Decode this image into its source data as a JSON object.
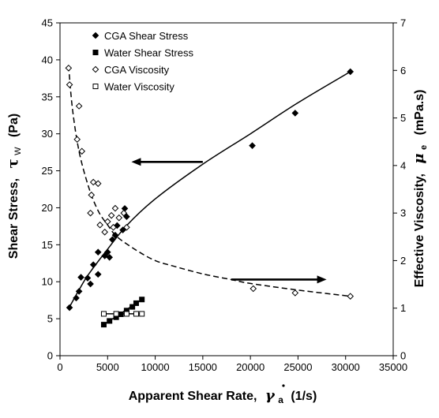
{
  "chart_data": {
    "type": "scatter",
    "title": "",
    "x_axis": {
      "label": "Apparent Shear Rate,",
      "symbol": "γ",
      "symbol_subscript": "a",
      "units": "(1/s)",
      "range": [
        0,
        35000
      ],
      "ticks": [
        0,
        5000,
        10000,
        15000,
        20000,
        25000,
        30000,
        35000
      ]
    },
    "y_axis_left": {
      "label": "Shear Stress,",
      "symbol": "τ",
      "symbol_subscript": "W",
      "units": "(Pa)",
      "range": [
        0,
        45
      ],
      "ticks": [
        0,
        5,
        10,
        15,
        20,
        25,
        30,
        35,
        40,
        45
      ]
    },
    "y_axis_right": {
      "label": "Effective Viscosity,",
      "symbol": "μ",
      "symbol_subscript": "e",
      "units": "(mPa.s)",
      "range": [
        0,
        7
      ],
      "ticks": [
        0,
        1,
        2,
        3,
        4,
        5,
        6,
        7
      ]
    },
    "grid": false,
    "legend_position": "top-left",
    "series": [
      {
        "name": "CGA Shear Stress",
        "axis": "left",
        "marker": "filled-diamond",
        "points": [
          [
            1000,
            6.5
          ],
          [
            1700,
            7.8
          ],
          [
            2000,
            8.7
          ],
          [
            2200,
            10.6
          ],
          [
            2900,
            10.5
          ],
          [
            3200,
            9.7
          ],
          [
            3500,
            12.3
          ],
          [
            4000,
            14.0
          ],
          [
            4000,
            11.0
          ],
          [
            4700,
            13.5
          ],
          [
            5000,
            14.0
          ],
          [
            5200,
            13.3
          ],
          [
            5500,
            15.7
          ],
          [
            5800,
            16.3
          ],
          [
            6000,
            17.6
          ],
          [
            6600,
            17.0
          ],
          [
            6800,
            19.9
          ],
          [
            7000,
            18.8
          ],
          [
            20200,
            28.4
          ],
          [
            24700,
            32.8
          ],
          [
            30500,
            38.4
          ]
        ]
      },
      {
        "name": "Water Shear Stress",
        "axis": "left",
        "marker": "filled-square",
        "points": [
          [
            4600,
            4.2
          ],
          [
            5200,
            4.7
          ],
          [
            5900,
            5.2
          ],
          [
            6400,
            5.6
          ],
          [
            7000,
            6.1
          ],
          [
            7600,
            6.6
          ],
          [
            8000,
            7.1
          ],
          [
            8600,
            7.6
          ]
        ]
      },
      {
        "name": "CGA Viscosity",
        "axis": "right",
        "marker": "open-diamond",
        "points": [
          [
            900,
            6.05
          ],
          [
            1000,
            5.7
          ],
          [
            1800,
            4.55
          ],
          [
            2000,
            5.25
          ],
          [
            2300,
            4.3
          ],
          [
            3200,
            3.0
          ],
          [
            3300,
            3.38
          ],
          [
            3500,
            3.65
          ],
          [
            4000,
            3.62
          ],
          [
            4200,
            2.75
          ],
          [
            4700,
            2.6
          ],
          [
            5000,
            2.82
          ],
          [
            5400,
            2.95
          ],
          [
            5600,
            2.7
          ],
          [
            5800,
            3.1
          ],
          [
            6200,
            2.9
          ],
          [
            6700,
            3.0
          ],
          [
            7000,
            2.7
          ],
          [
            20300,
            1.41
          ],
          [
            24700,
            1.32
          ],
          [
            30500,
            1.25
          ]
        ]
      },
      {
        "name": "Water Viscosity",
        "axis": "right",
        "marker": "open-square",
        "points": [
          [
            4600,
            0.88
          ],
          [
            5900,
            0.88
          ],
          [
            7000,
            0.88
          ],
          [
            8000,
            0.88
          ],
          [
            8600,
            0.88
          ]
        ]
      }
    ],
    "trendlines": [
      {
        "series": "CGA Shear Stress",
        "style": "solid",
        "axis": "left",
        "points": [
          [
            1000,
            6.6
          ],
          [
            2000,
            8.9
          ],
          [
            3000,
            11.0
          ],
          [
            5000,
            14.4
          ],
          [
            7000,
            17.6
          ],
          [
            10000,
            21.2
          ],
          [
            15000,
            25.9
          ],
          [
            20000,
            30.0
          ],
          [
            25000,
            34.2
          ],
          [
            30500,
            38.4
          ]
        ]
      },
      {
        "series": "Water Shear Stress",
        "style": "solid",
        "axis": "left",
        "points": [
          [
            4600,
            4.2
          ],
          [
            8600,
            7.6
          ]
        ]
      },
      {
        "series": "CGA Viscosity",
        "style": "dashed",
        "axis": "right",
        "points": [
          [
            900,
            6.1
          ],
          [
            1300,
            5.2
          ],
          [
            2000,
            4.3
          ],
          [
            3000,
            3.55
          ],
          [
            4000,
            3.05
          ],
          [
            5000,
            2.75
          ],
          [
            6000,
            2.5
          ],
          [
            8000,
            2.22
          ],
          [
            10000,
            2.0
          ],
          [
            12000,
            1.88
          ],
          [
            15000,
            1.72
          ],
          [
            18000,
            1.6
          ],
          [
            20000,
            1.52
          ],
          [
            25000,
            1.38
          ],
          [
            30500,
            1.25
          ]
        ]
      },
      {
        "series": "Water Viscosity",
        "style": "solid",
        "axis": "right",
        "points": [
          [
            4600,
            0.88
          ],
          [
            8600,
            0.88
          ]
        ]
      }
    ],
    "annotations": [
      {
        "type": "arrow",
        "direction": "left",
        "points_to": "left-axis",
        "from": [
          15000,
          26.2
        ],
        "to": [
          7500,
          26.2
        ],
        "axis": "left"
      },
      {
        "type": "arrow",
        "direction": "right",
        "points_to": "right-axis",
        "from": [
          18000,
          10.3
        ],
        "to": [
          28000,
          10.3
        ],
        "axis": "left"
      }
    ]
  }
}
